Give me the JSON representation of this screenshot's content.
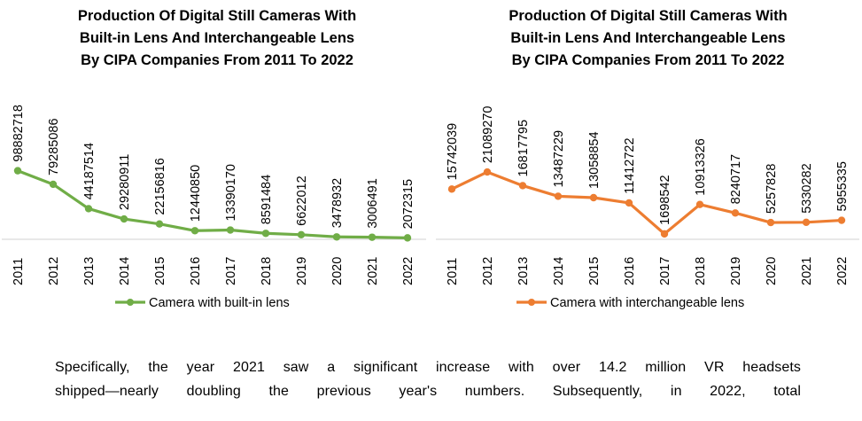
{
  "chart_data": [
    {
      "type": "line",
      "title": "Production Of Digital Still Cameras With Built-in Lens And Interchangeable Lens By CIPA Companies From 2011 To 2022",
      "title_lines": [
        "Production Of Digital Still Cameras With",
        "Built-in Lens And Interchangeable Lens",
        "By CIPA Companies From 2011 To 2022"
      ],
      "categories": [
        "2011",
        "2012",
        "2013",
        "2014",
        "2015",
        "2016",
        "2017",
        "2018",
        "2019",
        "2020",
        "2021",
        "2022"
      ],
      "series": [
        {
          "name": "Camera with built-in lens",
          "color": "#70AD47",
          "values": [
            98882718,
            79285086,
            44187514,
            29280911,
            22156816,
            12440850,
            13390170,
            8591484,
            6622012,
            3478932,
            3006491,
            2072315
          ]
        }
      ],
      "data_labels": [
        "98882718",
        "79285086",
        "44187514",
        "29280911",
        "22156816",
        "12440850",
        "13390170",
        "8591484",
        "6622012",
        "3478932",
        "3006491",
        "2072315"
      ],
      "xlabel": "",
      "ylabel": "",
      "ylim": [
        0,
        230000000
      ],
      "y_axis_visible": false,
      "grid": false,
      "legend": "bottom"
    },
    {
      "type": "line",
      "title": "Production Of Digital Still Cameras With Built-in Lens And Interchangeable Lens By CIPA Companies From 2011 To 2022",
      "title_lines": [
        "Production Of Digital Still Cameras With",
        "Built-in Lens And Interchangeable Lens",
        "By CIPA Companies From 2011 To 2022"
      ],
      "categories": [
        "2011",
        "2012",
        "2013",
        "2014",
        "2015",
        "2016",
        "2017",
        "2018",
        "2019",
        "2020",
        "2021",
        "2022"
      ],
      "series": [
        {
          "name": "Camera with interchangeable lens",
          "color": "#ED7D31",
          "values": [
            15742039,
            21089270,
            16817795,
            13487229,
            13058854,
            11412722,
            1698542,
            10913326,
            8240717,
            5257828,
            5330282,
            5955335
          ]
        }
      ],
      "data_labels": [
        "15742039",
        "21089270",
        "16817795",
        "13487229",
        "13058854",
        "11412722",
        "1698542",
        "10913326",
        "8240717",
        "5257828",
        "5330282",
        "5955335"
      ],
      "xlabel": "",
      "ylabel": "",
      "ylim": [
        0,
        50000000
      ],
      "y_axis_visible": false,
      "grid": false,
      "legend": "bottom"
    }
  ],
  "paragraph": {
    "lines": [
      "Specifically, the year 2021 saw a significant increase with over 14.2 million VR headsets",
      "shipped—nearly doubling the previous year's numbers. Subsequently, in 2022, total"
    ]
  }
}
